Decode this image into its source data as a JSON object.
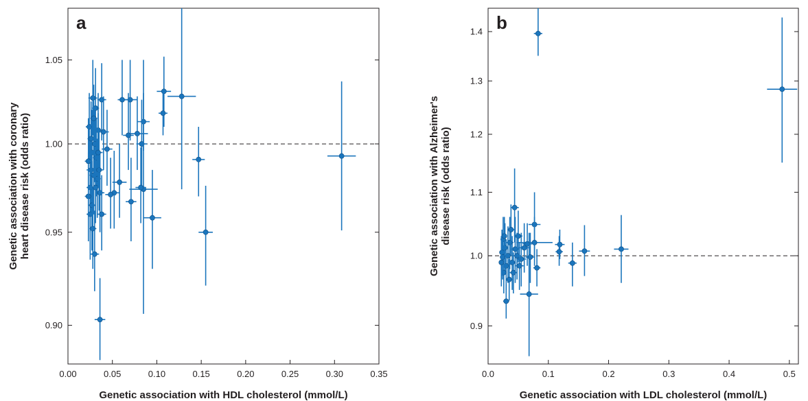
{
  "chart_data": [
    {
      "type": "scatter",
      "panel_label": "a",
      "xlabel": "Genetic association with HDL cholesterol (mmol/L)",
      "ylabel_lines": [
        "Genetic association with coronary",
        "heart disease risk (odds ratio)"
      ],
      "xlim": [
        0,
        0.35
      ],
      "ylim": [
        0.88,
        1.082
      ],
      "yscale": "log",
      "xticks": [
        0.0,
        0.05,
        0.1,
        0.15,
        0.2,
        0.25,
        0.3,
        0.35
      ],
      "xtick_labels": [
        "0.00",
        "0.05",
        "0.10",
        "0.15",
        "0.20",
        "0.25",
        "0.30",
        "0.35"
      ],
      "yticks": [
        0.9,
        0.95,
        1.0,
        1.05
      ],
      "ytick_labels": [
        "0.90",
        "0.95",
        "1.00",
        "1.05"
      ],
      "reference_line": 1.0,
      "color": "#1b75bc",
      "points": [
        {
          "x": 0.308,
          "y": 0.993,
          "xerr": 0.016,
          "ylo": 0.951,
          "yhi": 1.037
        },
        {
          "x": 0.155,
          "y": 0.95,
          "xerr": 0.008,
          "ylo": 0.921,
          "yhi": 0.976
        },
        {
          "x": 0.147,
          "y": 0.991,
          "xerr": 0.007,
          "ylo": 0.97,
          "yhi": 1.01
        },
        {
          "x": 0.128,
          "y": 1.028,
          "xerr": 0.016,
          "ylo": 0.974,
          "yhi": 1.083
        },
        {
          "x": 0.108,
          "y": 1.031,
          "xerr": 0.008,
          "ylo": 1.01,
          "yhi": 1.052
        },
        {
          "x": 0.107,
          "y": 1.018,
          "xerr": 0.005,
          "ylo": 1.005,
          "yhi": 1.031
        },
        {
          "x": 0.095,
          "y": 0.958,
          "xerr": 0.01,
          "ylo": 0.93,
          "yhi": 0.985
        },
        {
          "x": 0.085,
          "y": 1.013,
          "xerr": 0.007,
          "ylo": 0.996,
          "yhi": 1.03
        },
        {
          "x": 0.083,
          "y": 1.0,
          "xerr": 0.006,
          "ylo": 0.975,
          "yhi": 1.026
        },
        {
          "x": 0.085,
          "y": 0.974,
          "xerr": 0.016,
          "ylo": 0.906,
          "yhi": 1.05
        },
        {
          "x": 0.082,
          "y": 0.975,
          "xerr": 0.006,
          "ylo": 0.955,
          "yhi": 0.998
        },
        {
          "x": 0.078,
          "y": 1.006,
          "xerr": 0.012,
          "ylo": 0.985,
          "yhi": 1.028
        },
        {
          "x": 0.07,
          "y": 1.026,
          "xerr": 0.008,
          "ylo": 1.002,
          "yhi": 1.05
        },
        {
          "x": 0.068,
          "y": 1.005,
          "xerr": 0.006,
          "ylo": 0.985,
          "yhi": 1.03
        },
        {
          "x": 0.071,
          "y": 0.967,
          "xerr": 0.006,
          "ylo": 0.945,
          "yhi": 0.992
        },
        {
          "x": 0.061,
          "y": 1.026,
          "xerr": 0.005,
          "ylo": 1.005,
          "yhi": 1.05
        },
        {
          "x": 0.058,
          "y": 0.978,
          "xerr": 0.008,
          "ylo": 0.958,
          "yhi": 1.0
        },
        {
          "x": 0.052,
          "y": 0.972,
          "xerr": 0.006,
          "ylo": 0.952,
          "yhi": 0.996
        },
        {
          "x": 0.048,
          "y": 0.971,
          "xerr": 0.006,
          "ylo": 0.952,
          "yhi": 0.992
        },
        {
          "x": 0.044,
          "y": 0.997,
          "xerr": 0.006,
          "ylo": 0.976,
          "yhi": 1.02
        },
        {
          "x": 0.036,
          "y": 0.903,
          "xerr": 0.006,
          "ylo": 0.882,
          "yhi": 0.925
        },
        {
          "x": 0.03,
          "y": 0.938,
          "xerr": 0.005,
          "ylo": 0.918,
          "yhi": 0.962
        },
        {
          "x": 0.038,
          "y": 1.026,
          "xerr": 0.005,
          "ylo": 1.002,
          "yhi": 1.048
        },
        {
          "x": 0.034,
          "y": 1.008,
          "xerr": 0.008,
          "ylo": 0.985,
          "yhi": 1.03
        },
        {
          "x": 0.031,
          "y": 1.021,
          "xerr": 0.004,
          "ylo": 0.998,
          "yhi": 1.045
        },
        {
          "x": 0.028,
          "y": 1.027,
          "xerr": 0.005,
          "ylo": 1.005,
          "yhi": 1.05
        },
        {
          "x": 0.027,
          "y": 0.995,
          "xerr": 0.004,
          "ylo": 0.97,
          "yhi": 1.02
        },
        {
          "x": 0.026,
          "y": 0.985,
          "xerr": 0.005,
          "ylo": 0.96,
          "yhi": 1.008
        },
        {
          "x": 0.025,
          "y": 0.975,
          "xerr": 0.004,
          "ylo": 0.95,
          "yhi": 1.002
        },
        {
          "x": 0.025,
          "y": 0.96,
          "xerr": 0.004,
          "ylo": 0.935,
          "yhi": 0.985
        },
        {
          "x": 0.024,
          "y": 1.01,
          "xerr": 0.004,
          "ylo": 0.99,
          "yhi": 1.03
        },
        {
          "x": 0.023,
          "y": 0.97,
          "xerr": 0.004,
          "ylo": 0.945,
          "yhi": 0.995
        },
        {
          "x": 0.023,
          "y": 0.99,
          "xerr": 0.004,
          "ylo": 0.965,
          "yhi": 1.015
        },
        {
          "x": 0.027,
          "y": 0.965,
          "xerr": 0.004,
          "ylo": 0.94,
          "yhi": 0.99
        },
        {
          "x": 0.029,
          "y": 0.982,
          "xerr": 0.005,
          "ylo": 0.96,
          "yhi": 1.005
        },
        {
          "x": 0.028,
          "y": 0.952,
          "xerr": 0.004,
          "ylo": 0.93,
          "yhi": 0.975
        },
        {
          "x": 0.03,
          "y": 1.0,
          "xerr": 0.005,
          "ylo": 0.978,
          "yhi": 1.022
        },
        {
          "x": 0.032,
          "y": 0.992,
          "xerr": 0.004,
          "ylo": 0.97,
          "yhi": 1.015
        },
        {
          "x": 0.033,
          "y": 0.98,
          "xerr": 0.004,
          "ylo": 0.958,
          "yhi": 1.003
        },
        {
          "x": 0.026,
          "y": 1.003,
          "xerr": 0.004,
          "ylo": 0.982,
          "yhi": 1.025
        },
        {
          "x": 0.035,
          "y": 0.985,
          "xerr": 0.005,
          "ylo": 0.962,
          "yhi": 1.008
        },
        {
          "x": 0.036,
          "y": 0.972,
          "xerr": 0.005,
          "ylo": 0.95,
          "yhi": 0.995
        },
        {
          "x": 0.038,
          "y": 0.96,
          "xerr": 0.005,
          "ylo": 0.94,
          "yhi": 0.982
        },
        {
          "x": 0.04,
          "y": 1.007,
          "xerr": 0.006,
          "ylo": 0.985,
          "yhi": 1.028
        },
        {
          "x": 0.029,
          "y": 1.015,
          "xerr": 0.004,
          "ylo": 0.993,
          "yhi": 1.035
        },
        {
          "x": 0.031,
          "y": 0.975,
          "xerr": 0.004,
          "ylo": 0.955,
          "yhi": 0.998
        },
        {
          "x": 0.034,
          "y": 0.995,
          "xerr": 0.005,
          "ylo": 0.975,
          "yhi": 1.018
        }
      ]
    },
    {
      "type": "scatter",
      "panel_label": "b",
      "xlabel": "Genetic association with LDL cholesterol (mmol/L)",
      "ylabel_lines": [
        "Genetic association with Alzheimer's",
        "disease risk (odds ratio)"
      ],
      "xlim": [
        0,
        0.515
      ],
      "ylim": [
        0.85,
        1.45
      ],
      "yscale": "log",
      "xticks": [
        0.0,
        0.1,
        0.2,
        0.3,
        0.4,
        0.5
      ],
      "xtick_labels": [
        "0.0",
        "0.1",
        "0.2",
        "0.3",
        "0.4",
        "0.5"
      ],
      "yticks": [
        0.9,
        1.0,
        1.1,
        1.2,
        1.3,
        1.4
      ],
      "ytick_labels": [
        "0.9",
        "1.0",
        "1.1",
        "1.2",
        "1.3",
        "1.4"
      ],
      "reference_line": 1.0,
      "color": "#1b75bc",
      "points": [
        {
          "x": 0.488,
          "y": 1.284,
          "xerr": 0.025,
          "ylo": 1.15,
          "yhi": 1.43
        },
        {
          "x": 0.083,
          "y": 1.396,
          "xerr": 0.007,
          "ylo": 1.35,
          "yhi": 1.45
        },
        {
          "x": 0.221,
          "y": 1.01,
          "xerr": 0.012,
          "ylo": 0.96,
          "yhi": 1.063
        },
        {
          "x": 0.16,
          "y": 1.007,
          "xerr": 0.009,
          "ylo": 0.97,
          "yhi": 1.047
        },
        {
          "x": 0.14,
          "y": 0.989,
          "xerr": 0.007,
          "ylo": 0.955,
          "yhi": 1.02
        },
        {
          "x": 0.119,
          "y": 1.017,
          "xerr": 0.008,
          "ylo": 0.995,
          "yhi": 1.04
        },
        {
          "x": 0.118,
          "y": 1.006,
          "xerr": 0.006,
          "ylo": 0.985,
          "yhi": 1.03
        },
        {
          "x": 0.081,
          "y": 0.982,
          "xerr": 0.006,
          "ylo": 0.955,
          "yhi": 1.01
        },
        {
          "x": 0.077,
          "y": 1.048,
          "xerr": 0.01,
          "ylo": 1.0,
          "yhi": 1.1
        },
        {
          "x": 0.068,
          "y": 0.944,
          "xerr": 0.015,
          "ylo": 0.86,
          "yhi": 1.035
        },
        {
          "x": 0.077,
          "y": 1.02,
          "xerr": 0.03,
          "ylo": 0.985,
          "yhi": 1.06
        },
        {
          "x": 0.044,
          "y": 1.075,
          "xerr": 0.007,
          "ylo": 1.02,
          "yhi": 1.14
        },
        {
          "x": 0.03,
          "y": 0.934,
          "xerr": 0.005,
          "ylo": 0.91,
          "yhi": 0.958
        },
        {
          "x": 0.06,
          "y": 1.012,
          "xerr": 0.01,
          "ylo": 0.975,
          "yhi": 1.05
        },
        {
          "x": 0.055,
          "y": 0.995,
          "xerr": 0.008,
          "ylo": 0.955,
          "yhi": 1.035
        },
        {
          "x": 0.05,
          "y": 1.03,
          "xerr": 0.007,
          "ylo": 0.99,
          "yhi": 1.07
        },
        {
          "x": 0.045,
          "y": 1.01,
          "xerr": 0.008,
          "ylo": 0.96,
          "yhi": 1.06
        },
        {
          "x": 0.04,
          "y": 0.99,
          "xerr": 0.006,
          "ylo": 0.95,
          "yhi": 1.03
        },
        {
          "x": 0.036,
          "y": 1.02,
          "xerr": 0.006,
          "ylo": 0.98,
          "yhi": 1.06
        },
        {
          "x": 0.033,
          "y": 1.0,
          "xerr": 0.005,
          "ylo": 0.96,
          "yhi": 1.045
        },
        {
          "x": 0.03,
          "y": 0.985,
          "xerr": 0.005,
          "ylo": 0.95,
          "yhi": 1.025
        },
        {
          "x": 0.028,
          "y": 1.012,
          "xerr": 0.005,
          "ylo": 0.975,
          "yhi": 1.05
        },
        {
          "x": 0.026,
          "y": 0.975,
          "xerr": 0.004,
          "ylo": 0.945,
          "yhi": 1.01
        },
        {
          "x": 0.025,
          "y": 1.025,
          "xerr": 0.004,
          "ylo": 0.99,
          "yhi": 1.06
        },
        {
          "x": 0.024,
          "y": 0.998,
          "xerr": 0.004,
          "ylo": 0.965,
          "yhi": 1.035
        },
        {
          "x": 0.023,
          "y": 1.005,
          "xerr": 0.004,
          "ylo": 0.97,
          "yhi": 1.04
        },
        {
          "x": 0.022,
          "y": 0.99,
          "xerr": 0.004,
          "ylo": 0.955,
          "yhi": 1.03
        },
        {
          "x": 0.035,
          "y": 0.965,
          "xerr": 0.006,
          "ylo": 0.935,
          "yhi": 0.995
        },
        {
          "x": 0.042,
          "y": 0.975,
          "xerr": 0.006,
          "ylo": 0.945,
          "yhi": 1.005
        },
        {
          "x": 0.048,
          "y": 1.0,
          "xerr": 0.007,
          "ylo": 0.965,
          "yhi": 1.035
        },
        {
          "x": 0.065,
          "y": 1.018,
          "xerr": 0.008,
          "ylo": 0.985,
          "yhi": 1.05
        },
        {
          "x": 0.07,
          "y": 0.998,
          "xerr": 0.008,
          "ylo": 0.96,
          "yhi": 1.035
        },
        {
          "x": 0.052,
          "y": 0.985,
          "xerr": 0.007,
          "ylo": 0.95,
          "yhi": 1.02
        },
        {
          "x": 0.038,
          "y": 1.04,
          "xerr": 0.006,
          "ylo": 1.0,
          "yhi": 1.08
        },
        {
          "x": 0.027,
          "y": 1.03,
          "xerr": 0.004,
          "ylo": 1.0,
          "yhi": 1.06
        }
      ]
    }
  ]
}
